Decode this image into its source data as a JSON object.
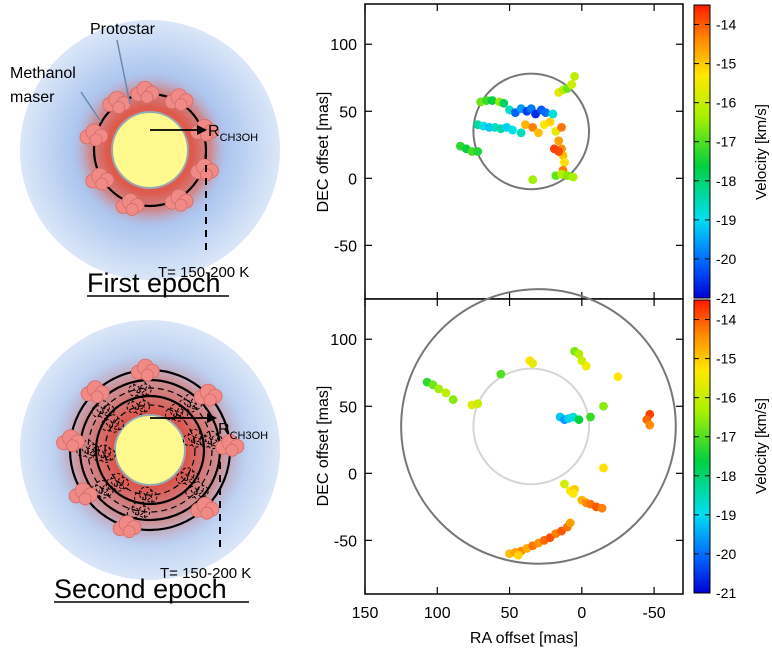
{
  "colors": {
    "halo": "#a7c3ea",
    "glow": "#d86a5a",
    "star_fill": "#fff98f",
    "star_stroke": "#9aa8b0",
    "maser": "#f08a86",
    "maser_stroke": "#d46a66",
    "circle_dark": "#777777",
    "circle_light": "#d6d6d6"
  },
  "schematic": {
    "first": {
      "protostar_label": "Protostar",
      "maser_label_line1": "Methanol",
      "maser_label_line2": "maser",
      "radius_label_main": "R",
      "radius_label_sub": "CH3OH",
      "temperature_label": "T= 150-200 K",
      "epoch_label": "First epoch"
    },
    "second": {
      "radius_label_main": "R",
      "radius_label_sub": "CH3OH",
      "temperature_label": "T= 150-200 K",
      "epoch_label": "Second epoch"
    }
  },
  "chart_data": [
    {
      "type": "scatter",
      "panel": "top",
      "xlabel": "",
      "ylabel": "DEC offset [mas]",
      "xlim": [
        150,
        -70
      ],
      "ylim": [
        -90,
        130
      ],
      "yticks": [
        100,
        50,
        0,
        -50
      ],
      "colorbar": {
        "label": "Velocity [km/s]",
        "range": [
          -21,
          -13.5
        ],
        "ticks": [
          -14,
          -15,
          -16,
          -17,
          -18,
          -19,
          -20,
          -21
        ]
      },
      "reference_circles": [
        {
          "center": [
            35,
            35
          ],
          "radius": 40,
          "style": "dark"
        }
      ],
      "points": [
        {
          "x": 70,
          "y": 57,
          "v": -16.8
        },
        {
          "x": 66,
          "y": 58,
          "v": -17.2
        },
        {
          "x": 62,
          "y": 58,
          "v": -17.6
        },
        {
          "x": 57,
          "y": 57,
          "v": -16.5
        },
        {
          "x": 54,
          "y": 56,
          "v": -17.9
        },
        {
          "x": 50,
          "y": 51,
          "v": -18.6
        },
        {
          "x": 46,
          "y": 49,
          "v": -20.1
        },
        {
          "x": 42,
          "y": 52,
          "v": -19.6
        },
        {
          "x": 38,
          "y": 50,
          "v": -20.4
        },
        {
          "x": 35,
          "y": 52,
          "v": -19.9
        },
        {
          "x": 32,
          "y": 48,
          "v": -20.6
        },
        {
          "x": 28,
          "y": 51,
          "v": -20.2
        },
        {
          "x": 25,
          "y": 49,
          "v": -20.0
        },
        {
          "x": 20,
          "y": 48,
          "v": -18.8
        },
        {
          "x": 16,
          "y": 64,
          "v": -15.6
        },
        {
          "x": 13,
          "y": 66,
          "v": -16.2
        },
        {
          "x": 10,
          "y": 67,
          "v": -16.8
        },
        {
          "x": 7,
          "y": 70,
          "v": -15.9
        },
        {
          "x": 5,
          "y": 76,
          "v": -16.1
        },
        {
          "x": 72,
          "y": 40,
          "v": -18.3
        },
        {
          "x": 68,
          "y": 39,
          "v": -18.9
        },
        {
          "x": 64,
          "y": 38,
          "v": -19.2
        },
        {
          "x": 60,
          "y": 38,
          "v": -18.7
        },
        {
          "x": 56,
          "y": 37,
          "v": -18.4
        },
        {
          "x": 52,
          "y": 38,
          "v": -19.1
        },
        {
          "x": 48,
          "y": 36,
          "v": -18.9
        },
        {
          "x": 42,
          "y": 34,
          "v": -18.6
        },
        {
          "x": 39,
          "y": 40,
          "v": -14.8
        },
        {
          "x": 34,
          "y": 38,
          "v": -14.3
        },
        {
          "x": 30,
          "y": 34,
          "v": -14.9
        },
        {
          "x": 26,
          "y": 40,
          "v": -15.3
        },
        {
          "x": 22,
          "y": 42,
          "v": -15.1
        },
        {
          "x": 18,
          "y": 35,
          "v": -15.6
        },
        {
          "x": 14,
          "y": 38,
          "v": -14.2
        },
        {
          "x": 16,
          "y": 28,
          "v": -14.6
        },
        {
          "x": 14,
          "y": 22,
          "v": -14.4
        },
        {
          "x": 13,
          "y": 17,
          "v": -14.9
        },
        {
          "x": 12,
          "y": 12,
          "v": -15.2
        },
        {
          "x": 13,
          "y": 6,
          "v": -14.3
        },
        {
          "x": 16,
          "y": 20,
          "v": -13.9
        },
        {
          "x": 19,
          "y": 22,
          "v": -13.8
        },
        {
          "x": 84,
          "y": 24,
          "v": -17.3
        },
        {
          "x": 80,
          "y": 22,
          "v": -17.6
        },
        {
          "x": 76,
          "y": 20,
          "v": -17.1
        },
        {
          "x": 72,
          "y": 20,
          "v": -17.4
        },
        {
          "x": 34,
          "y": -1,
          "v": -16.4
        },
        {
          "x": 18,
          "y": 2,
          "v": -16.9
        },
        {
          "x": 14,
          "y": 3,
          "v": -16.2
        },
        {
          "x": 10,
          "y": 2,
          "v": -16.6
        },
        {
          "x": 6,
          "y": 1,
          "v": -16.3
        }
      ]
    },
    {
      "type": "scatter",
      "panel": "bottom",
      "xlabel": "RA offset [mas]",
      "ylabel": "DEC offset [mas]",
      "xlim": [
        150,
        -70
      ],
      "ylim": [
        -90,
        130
      ],
      "xticks": [
        150,
        100,
        50,
        0,
        -50
      ],
      "yticks": [
        100,
        50,
        0,
        -50
      ],
      "colorbar": {
        "label": "Velocity [km/s]",
        "range": [
          -21,
          -13.5
        ],
        "ticks": [
          -14,
          -15,
          -16,
          -17,
          -18,
          -19,
          -20,
          -21
        ]
      },
      "reference_circles": [
        {
          "center": [
            30,
            35
          ],
          "radius": 95,
          "style": "dark"
        },
        {
          "center": [
            35,
            35
          ],
          "radius": 40,
          "style": "light"
        }
      ],
      "points": [
        {
          "x": 107,
          "y": 68,
          "v": -17.3
        },
        {
          "x": 103,
          "y": 66,
          "v": -16.8
        },
        {
          "x": 99,
          "y": 63,
          "v": -16.4
        },
        {
          "x": 94,
          "y": 60,
          "v": -16.1
        },
        {
          "x": 89,
          "y": 55,
          "v": -16.6
        },
        {
          "x": 76,
          "y": 51,
          "v": -15.7
        },
        {
          "x": 72,
          "y": 52,
          "v": -15.9
        },
        {
          "x": 56,
          "y": 74,
          "v": -17.0
        },
        {
          "x": 36,
          "y": 84,
          "v": -15.2
        },
        {
          "x": 34,
          "y": 82,
          "v": -15.6
        },
        {
          "x": 5,
          "y": 91,
          "v": -16.7
        },
        {
          "x": 2,
          "y": 89,
          "v": -16.2
        },
        {
          "x": 0,
          "y": 84,
          "v": -15.9
        },
        {
          "x": -3,
          "y": 80,
          "v": -15.5
        },
        {
          "x": -25,
          "y": 72,
          "v": -15.3
        },
        {
          "x": 15,
          "y": 42,
          "v": -19.2
        },
        {
          "x": 12,
          "y": 40,
          "v": -19.6
        },
        {
          "x": 9,
          "y": 41,
          "v": -19.1
        },
        {
          "x": 6,
          "y": 42,
          "v": -18.8
        },
        {
          "x": 2,
          "y": 40,
          "v": -17.6
        },
        {
          "x": -6,
          "y": 42,
          "v": -17.2
        },
        {
          "x": -15,
          "y": 50,
          "v": -16.6
        },
        {
          "x": -47,
          "y": 44,
          "v": -13.8
        },
        {
          "x": -45,
          "y": 40,
          "v": -14.1
        },
        {
          "x": -47,
          "y": 36,
          "v": -14.4
        },
        {
          "x": -15,
          "y": 4,
          "v": -15.2
        },
        {
          "x": 8,
          "y": -13,
          "v": -15.4
        },
        {
          "x": 5,
          "y": -12,
          "v": -15.0
        },
        {
          "x": 0,
          "y": -20,
          "v": -14.8
        },
        {
          "x": -3,
          "y": -22,
          "v": -14.4
        },
        {
          "x": -6,
          "y": -23,
          "v": -14.2
        },
        {
          "x": -10,
          "y": -25,
          "v": -14.0
        },
        {
          "x": -14,
          "y": -26,
          "v": -14.3
        },
        {
          "x": 6,
          "y": -15,
          "v": -15.3
        },
        {
          "x": 12,
          "y": -8,
          "v": -15.8
        },
        {
          "x": 50,
          "y": -60,
          "v": -14.9
        },
        {
          "x": 46,
          "y": -59,
          "v": -14.6
        },
        {
          "x": 42,
          "y": -58,
          "v": -14.4
        },
        {
          "x": 38,
          "y": -56,
          "v": -14.7
        },
        {
          "x": 34,
          "y": -54,
          "v": -14.2
        },
        {
          "x": 30,
          "y": -52,
          "v": -14.5
        },
        {
          "x": 26,
          "y": -50,
          "v": -14.1
        },
        {
          "x": 22,
          "y": -48,
          "v": -13.9
        },
        {
          "x": 18,
          "y": -45,
          "v": -14.3
        },
        {
          "x": 14,
          "y": -43,
          "v": -14.0
        },
        {
          "x": 10,
          "y": -40,
          "v": -14.2
        },
        {
          "x": 44,
          "y": -61,
          "v": -15.1
        },
        {
          "x": 8,
          "y": -37,
          "v": -14.6
        }
      ]
    }
  ]
}
